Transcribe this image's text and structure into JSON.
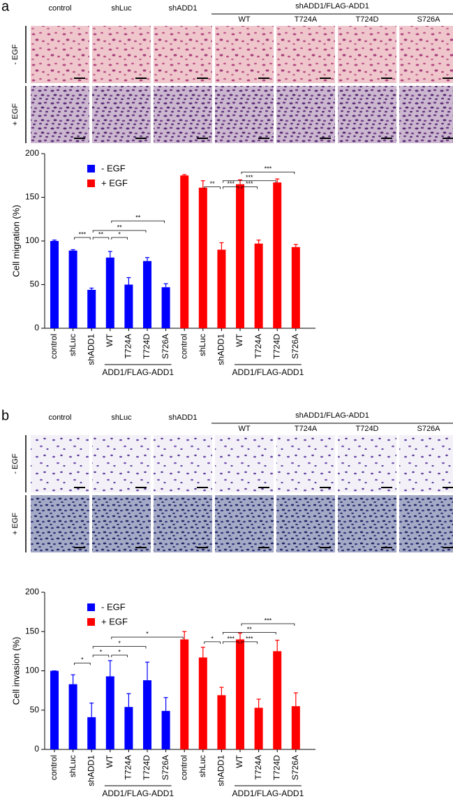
{
  "panels": [
    {
      "label": "a",
      "group": "shADD1/FLAG-ADD1",
      "columns": [
        "control",
        "shLuc",
        "shADD1",
        "WT",
        "T724A",
        "T724D",
        "S726A"
      ],
      "rows": [
        "- EGF",
        "+ EGF"
      ]
    },
    {
      "label": "b",
      "group": "shADD1/FLAG-ADD1",
      "columns": [
        "control",
        "shLuc",
        "shADD1",
        "WT",
        "T724A",
        "T724D",
        "S726A"
      ],
      "rows": [
        "- EGF",
        "+ EGF"
      ]
    }
  ],
  "chart_data": [
    {
      "type": "bar",
      "y_label": "Cell migration (%)",
      "categories": [
        "control",
        "shLuc",
        "shADD1",
        "WT",
        "T724A",
        "T724D",
        "S726A",
        "control",
        "shLuc",
        "shADD1",
        "WT",
        "T724A",
        "T724D",
        "S726A"
      ],
      "series": [
        {
          "name": "- EGF",
          "color": "#0000ff",
          "values": [
            100,
            89,
            44,
            81,
            50,
            77,
            47,
            null,
            null,
            null,
            null,
            null,
            null,
            null
          ],
          "errors": [
            1,
            1,
            2,
            7,
            8,
            4,
            4,
            null,
            null,
            null,
            null,
            null,
            null,
            null
          ]
        },
        {
          "name": "+ EGF",
          "color": "#ff0000",
          "values": [
            null,
            null,
            null,
            null,
            null,
            null,
            null,
            175,
            161,
            90,
            165,
            97,
            167,
            93
          ],
          "errors": [
            null,
            null,
            null,
            null,
            null,
            null,
            null,
            1,
            8,
            8,
            5,
            4,
            4,
            3
          ]
        }
      ],
      "ylim": [
        0,
        200
      ],
      "yticks": [
        0,
        50,
        100,
        150,
        200
      ],
      "group_labels": [
        {
          "text": "ADD1/FLAG-ADD1",
          "from": 3,
          "to": 6
        },
        {
          "text": "ADD1/FLAG-ADD1",
          "from": 10,
          "to": 13
        }
      ],
      "significance": [
        {
          "from": 1,
          "to": 2,
          "y": 104,
          "text": "***"
        },
        {
          "from": 2,
          "to": 3,
          "y": 104,
          "text": "**"
        },
        {
          "from": 3,
          "to": 4,
          "y": 104,
          "text": "*"
        },
        {
          "from": 2,
          "to": 5,
          "y": 112,
          "text": "**"
        },
        {
          "from": 3,
          "to": 6,
          "y": 123,
          "text": "**"
        },
        {
          "from": 8,
          "to": 9,
          "y": 162,
          "text": "**"
        },
        {
          "from": 9,
          "to": 10,
          "y": 162,
          "text": "***"
        },
        {
          "from": 10,
          "to": 11,
          "y": 162,
          "text": "***"
        },
        {
          "from": 9,
          "to": 12,
          "y": 169,
          "text": "***"
        },
        {
          "from": 10,
          "to": 13,
          "y": 179,
          "text": "***"
        }
      ]
    },
    {
      "type": "bar",
      "y_label": "Cell invasion (%)",
      "categories": [
        "control",
        "shLuc",
        "shADD1",
        "WT",
        "T724A",
        "T724D",
        "S726A",
        "control",
        "shLuc",
        "shADD1",
        "WT",
        "T724A",
        "T724D",
        "S726A"
      ],
      "series": [
        {
          "name": "- EGF",
          "color": "#0000ff",
          "values": [
            100,
            83,
            41,
            93,
            54,
            88,
            49,
            null,
            null,
            null,
            null,
            null,
            null,
            null
          ],
          "errors": [
            0,
            12,
            18,
            20,
            17,
            23,
            17,
            null,
            null,
            null,
            null,
            null,
            null,
            null
          ]
        },
        {
          "name": "+ EGF",
          "color": "#ff0000",
          "values": [
            null,
            null,
            null,
            null,
            null,
            null,
            null,
            140,
            117,
            69,
            140,
            53,
            125,
            55
          ],
          "errors": [
            null,
            null,
            null,
            null,
            null,
            null,
            null,
            10,
            13,
            10,
            8,
            11,
            14,
            17
          ]
        }
      ],
      "ylim": [
        0,
        200
      ],
      "yticks": [
        0,
        50,
        100,
        150,
        200
      ],
      "group_labels": [
        {
          "text": "ADD1/FLAG-ADD1",
          "from": 3,
          "to": 6
        },
        {
          "text": "ADD1/FLAG-ADD1",
          "from": 10,
          "to": 13
        }
      ],
      "significance": [
        {
          "from": 1,
          "to": 2,
          "y": 110,
          "text": "*"
        },
        {
          "from": 2,
          "to": 3,
          "y": 120,
          "text": "*"
        },
        {
          "from": 3,
          "to": 4,
          "y": 120,
          "text": "*"
        },
        {
          "from": 2,
          "to": 5,
          "y": 131,
          "text": "*"
        },
        {
          "from": 3,
          "to": 7,
          "y": 143,
          "text": "*"
        },
        {
          "from": 8,
          "to": 9,
          "y": 137,
          "text": "*"
        },
        {
          "from": 9,
          "to": 10,
          "y": 137,
          "text": "***"
        },
        {
          "from": 10,
          "to": 11,
          "y": 137,
          "text": "***"
        },
        {
          "from": 9,
          "to": 12,
          "y": 149,
          "text": "**"
        },
        {
          "from": 10,
          "to": 13,
          "y": 160,
          "text": "***"
        }
      ]
    }
  ]
}
